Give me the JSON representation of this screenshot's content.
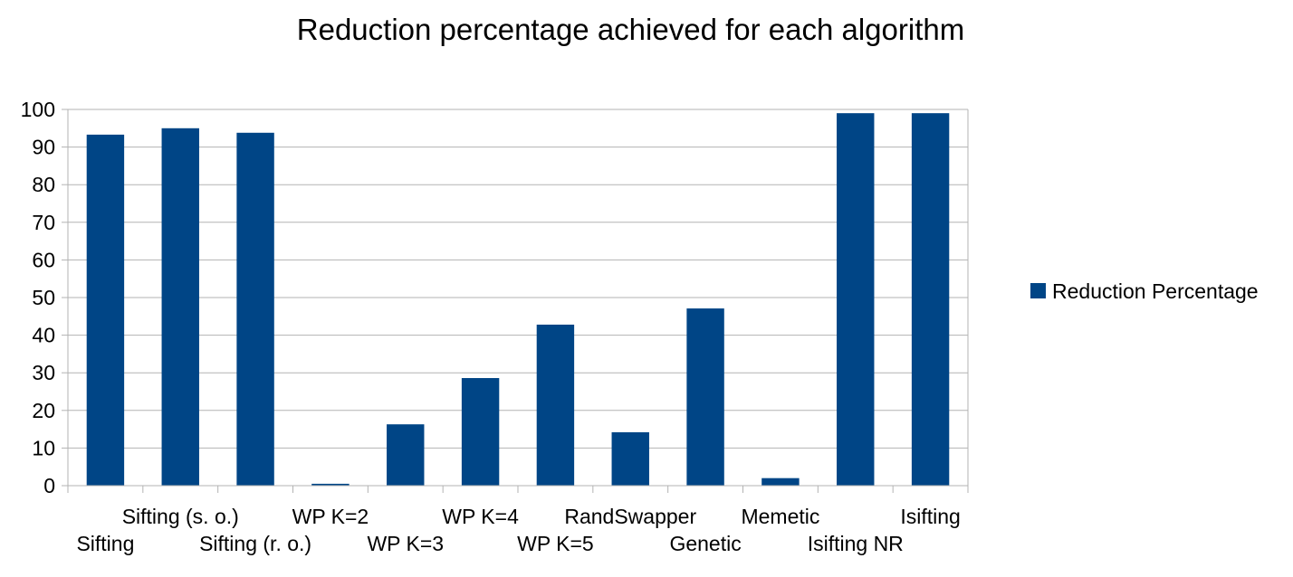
{
  "chart_data": {
    "type": "bar",
    "title": "Reduction percentage achieved for each algorithm",
    "xlabel": "",
    "ylabel": "",
    "categories": [
      "Sifting",
      "Sifting (s. o.)",
      "Sifting (r. o.)",
      "WP K=2",
      "WP K=3",
      "WP K=4",
      "WP K=5",
      "RandSwapper",
      "Genetic",
      "Memetic",
      "Isifting NR",
      "Isifting"
    ],
    "series": [
      {
        "name": "Reduction Percentage",
        "values": [
          93.3,
          95.0,
          93.8,
          0.5,
          16.3,
          28.6,
          42.8,
          14.2,
          47.1,
          2.0,
          99.0,
          99.0
        ]
      }
    ],
    "ylim": [
      0,
      100
    ],
    "yticks": [
      0,
      10,
      20,
      30,
      40,
      50,
      60,
      70,
      80,
      90,
      100
    ],
    "grid": true,
    "legend_position": "right",
    "bar_color": "#004586",
    "grid_color": "#b3b3b3"
  }
}
